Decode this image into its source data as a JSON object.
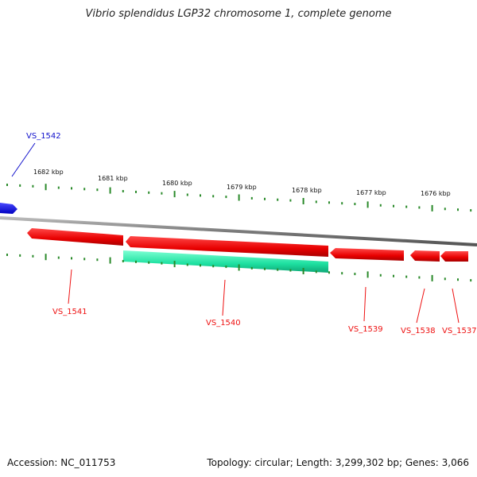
{
  "title": "Vibrio splendidus LGP32 chromosome 1, complete genome",
  "footer": {
    "accession": "Accession: NC_011753",
    "info": "Topology: circular; Length: 3,299,302 bp; Genes: 3,066"
  },
  "colors": {
    "forward_gene": "#ee1111",
    "rna_gene": "#22e8a8",
    "highlight_gene": "#1111ee",
    "backbone": "#888888",
    "tick": "#2a8a2a"
  },
  "ruler": {
    "unit": "kbp",
    "labels": [
      "1682 kbp",
      "1681 kbp",
      "1680 kbp",
      "1679 kbp",
      "1678 kbp",
      "1677 kbp",
      "1676 kbp"
    ]
  },
  "genes": [
    {
      "id": "VS_1542",
      "color": "blue"
    },
    {
      "id": "VS_1541",
      "color": "red"
    },
    {
      "id": "VS_1540",
      "color": "red"
    },
    {
      "id": "VS_1539",
      "color": "red"
    },
    {
      "id": "VS_1538",
      "color": "red"
    },
    {
      "id": "VS_1537",
      "color": "red"
    }
  ]
}
